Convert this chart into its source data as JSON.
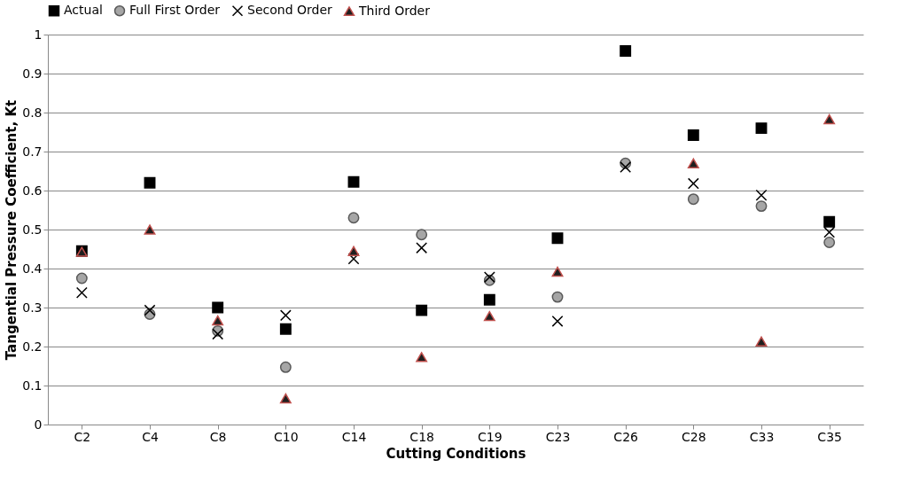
{
  "chart_data": {
    "type": "scatter",
    "xlabel": "Cutting Conditions",
    "ylabel": "Tangential Pressure Coefficient, Kt",
    "categories": [
      "C2",
      "C4",
      "C8",
      "C10",
      "C14",
      "C18",
      "C19",
      "C23",
      "C26",
      "C28",
      "C33",
      "C35"
    ],
    "series": [
      {
        "name": "Actual",
        "color": "#000000",
        "marker": "square",
        "values": [
          0.445,
          0.62,
          0.3,
          0.245,
          0.622,
          0.293,
          0.32,
          0.478,
          0.958,
          0.742,
          0.76,
          0.52
        ]
      },
      {
        "name": "Full First Order",
        "color": "#a6a6a6",
        "marker": "circle",
        "values": [
          0.375,
          0.283,
          0.24,
          0.147,
          0.53,
          0.487,
          0.37,
          0.327,
          0.67,
          0.578,
          0.56,
          0.467
        ]
      },
      {
        "name": "Second Order",
        "color": "#000000",
        "marker": "cross",
        "values": [
          0.338,
          0.293,
          0.232,
          0.28,
          0.425,
          0.453,
          0.378,
          0.265,
          0.66,
          0.618,
          0.588,
          0.493
        ]
      },
      {
        "name": "Third Order",
        "color": "#1f1f1f",
        "marker": "triangle",
        "values": [
          0.443,
          0.5,
          0.267,
          0.067,
          0.445,
          0.173,
          0.278,
          0.392,
          null,
          0.67,
          0.213,
          0.783
        ]
      }
    ],
    "ylim": [
      0,
      1
    ],
    "yticks": [
      0,
      0.1,
      0.2,
      0.3,
      0.4,
      0.5,
      0.6,
      0.7,
      0.8,
      0.9,
      1
    ],
    "grid": "y",
    "legend": "top"
  }
}
